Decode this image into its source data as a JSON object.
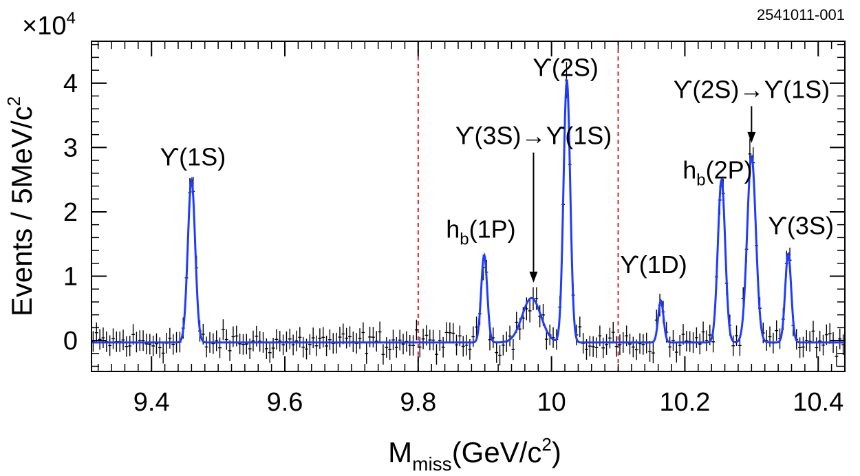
{
  "figure_id": "2541011-001",
  "chart_data": {
    "type": "scatter",
    "xlabel": "M",
    "xlabel_sub": "miss",
    "xlabel_tail": "(GeV/c",
    "xlabel_sup": "2",
    "xlabel_close": ")",
    "ylabel": "Events / 5MeV/c",
    "ylabel_sup": "2",
    "y_multiplier_prefix": "×10",
    "y_multiplier_sup": "4",
    "xlim": [
      9.31,
      10.44
    ],
    "ylim": [
      -0.48,
      4.65
    ],
    "x_ticks": [
      9.4,
      9.6,
      9.8,
      10.0,
      10.2,
      10.4
    ],
    "x_tick_labels": [
      "9.4",
      "9.6",
      "9.8",
      "10",
      "10.2",
      "10.4"
    ],
    "y_ticks": [
      0,
      1,
      2,
      3,
      4
    ],
    "y_tick_labels": [
      "0",
      "1",
      "2",
      "3",
      "4"
    ],
    "vertical_lines": [
      9.8,
      10.1
    ],
    "vertical_line_color": "#e8201c",
    "fit_color": "#1f3bff",
    "data_color": "#000000",
    "fit_baseline": -0.03,
    "peaks": [
      {
        "x": 9.46,
        "amp": 2.53,
        "sigma": 0.0055
      },
      {
        "x": 9.899,
        "amp": 1.36,
        "sigma": 0.0045
      },
      {
        "x": 9.97,
        "amp": 0.69,
        "sigma": 0.014
      },
      {
        "x": 10.023,
        "amp": 4.07,
        "sigma": 0.005
      },
      {
        "x": 10.164,
        "amp": 0.65,
        "sigma": 0.004
      },
      {
        "x": 10.255,
        "amp": 2.53,
        "sigma": 0.0055
      },
      {
        "x": 10.3,
        "amp": 2.9,
        "sigma": 0.0065
      },
      {
        "x": 10.355,
        "amp": 1.38,
        "sigma": 0.0045
      }
    ],
    "annotations": [
      {
        "id": "y1s",
        "text": "ϒ(1S)",
        "x": 9.462,
        "y": 2.72
      },
      {
        "id": "hb1p",
        "text": "h",
        "sub": "b",
        "tail": "(1P)",
        "x": 9.894,
        "y": 1.6
      },
      {
        "id": "y3s-y1s",
        "text": "ϒ(3S)→ϒ(1S)",
        "x": 9.973,
        "y": 3.05,
        "arrow_to": 0.9
      },
      {
        "id": "y2s",
        "text": "ϒ(2S)",
        "x": 10.021,
        "y": 4.11
      },
      {
        "id": "y1d",
        "text": "ϒ(1D)",
        "x": 10.153,
        "y": 1.05
      },
      {
        "id": "hb2p",
        "text": "h",
        "sub": "b",
        "tail": "(2P)",
        "x": 10.249,
        "y": 2.52
      },
      {
        "id": "y2s-y1s",
        "text": "ϒ(2S)→ϒ(1S)",
        "x": 10.3,
        "y": 3.77,
        "arrow_to": 3.07
      },
      {
        "id": "y3s",
        "text": "ϒ(3S)",
        "x": 10.374,
        "y": 1.65
      }
    ]
  }
}
